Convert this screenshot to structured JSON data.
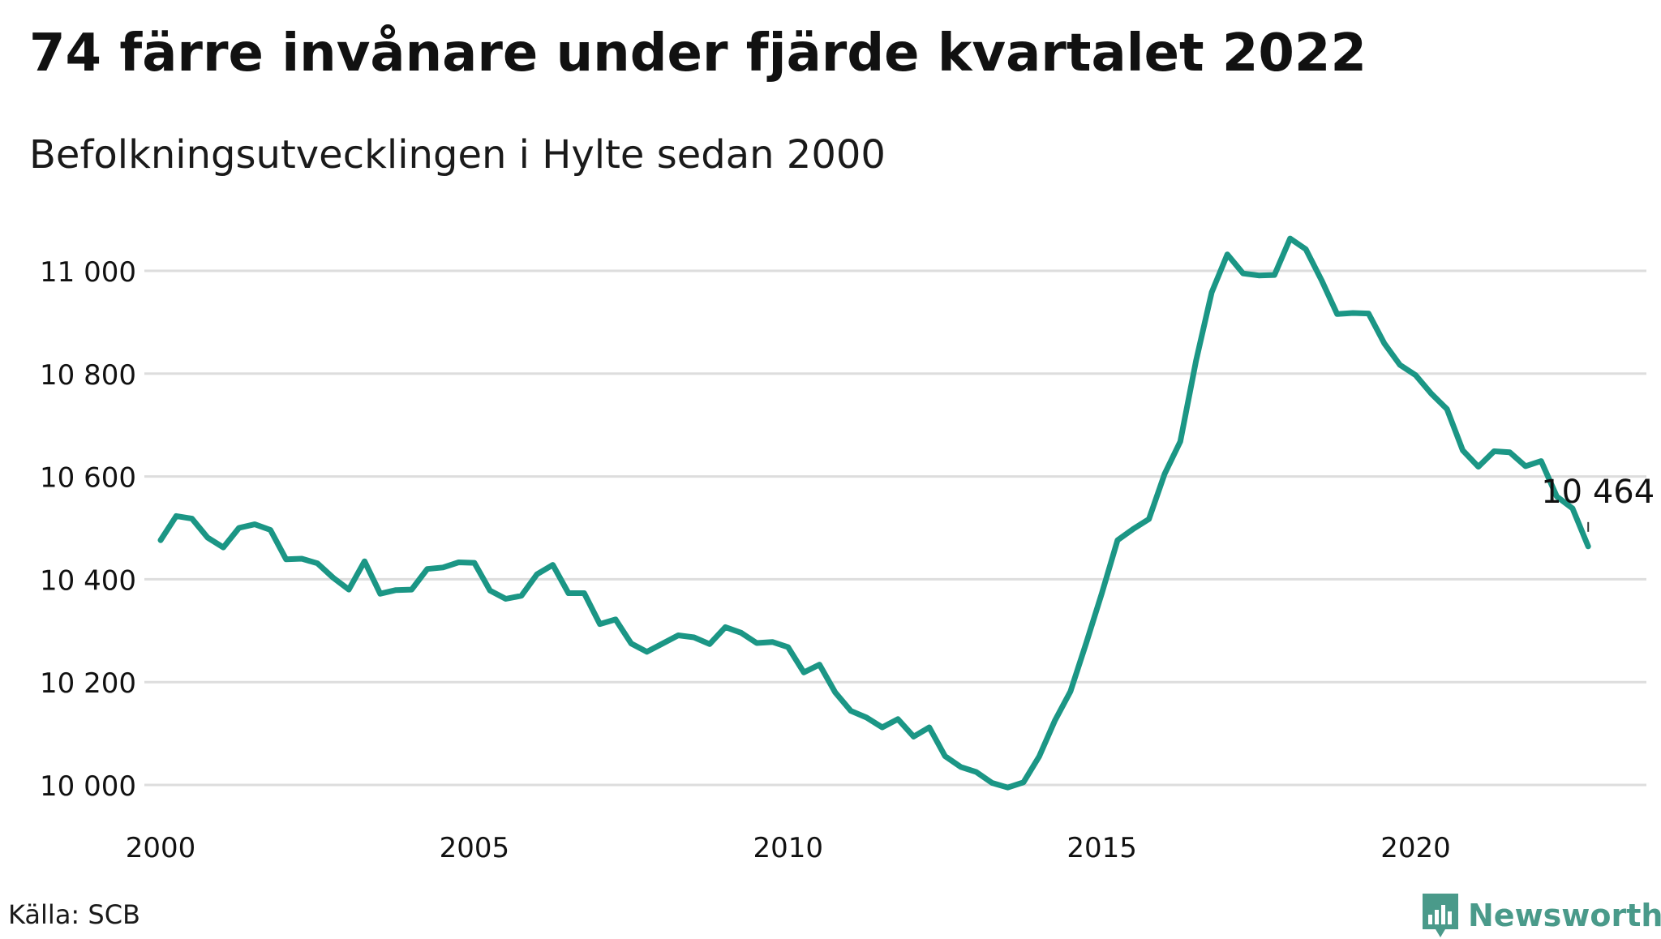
{
  "header": {
    "title": "74 färre invånare under fjärde kvartalet 2022",
    "subtitle": "Befolkningsutvecklingen i Hylte sedan 2000"
  },
  "footer": {
    "source": "Källa: SCB",
    "brand": "Newsworthy",
    "brand_icon": "bar-chart-speech-bubble-icon"
  },
  "colors": {
    "line": "#1b9685",
    "grid": "#dddddd",
    "text": "#111111",
    "brand": "#4a9a8a"
  },
  "chart_data": {
    "type": "line",
    "title": "74 färre invånare under fjärde kvartalet 2022",
    "subtitle": "Befolkningsutvecklingen i Hylte sedan 2000",
    "xlabel": "",
    "ylabel": "",
    "xlim": [
      2000,
      2023
    ],
    "ylim": [
      10000,
      11000
    ],
    "x_ticks": [
      2000,
      2005,
      2010,
      2015,
      2020
    ],
    "x_tick_labels": [
      "2000",
      "2005",
      "2010",
      "2015",
      "2020"
    ],
    "y_ticks": [
      10000,
      10200,
      10400,
      10600,
      10800,
      11000
    ],
    "y_tick_labels": [
      "10 000",
      "10 200",
      "10 400",
      "10 600",
      "10 800",
      "11 000"
    ],
    "grid": true,
    "legend": "none",
    "series": [
      {
        "x": [
          2000.0,
          2000.25,
          2000.5,
          2000.75,
          2001.0,
          2001.25,
          2001.5,
          2001.75,
          2002.0,
          2002.25,
          2002.5,
          2002.75,
          2003.0,
          2003.25,
          2003.5,
          2003.75,
          2004.0,
          2004.25,
          2004.5,
          2004.75,
          2005.0,
          2005.25,
          2005.5,
          2005.75,
          2006.0,
          2006.25,
          2006.5,
          2006.75,
          2007.0,
          2007.25,
          2007.5,
          2007.75,
          2008.0,
          2008.25,
          2008.5,
          2008.75,
          2009.0,
          2009.25,
          2009.5,
          2009.75,
          2010.0,
          2010.25,
          2010.5,
          2010.75,
          2011.0,
          2011.25,
          2011.5,
          2011.75,
          2012.0,
          2012.25,
          2012.5,
          2012.75,
          2013.0,
          2013.25,
          2013.5,
          2013.75,
          2014.0,
          2014.25,
          2014.5,
          2014.75,
          2015.0,
          2015.25,
          2015.5,
          2015.75,
          2016.0,
          2016.25,
          2016.5,
          2016.75,
          2017.0,
          2017.25,
          2017.5,
          2017.75,
          2018.0,
          2018.25,
          2018.5,
          2018.75,
          2019.0,
          2019.25,
          2019.5,
          2019.75,
          2020.0,
          2020.25,
          2020.5,
          2020.75,
          2021.0,
          2021.25,
          2021.5,
          2021.75,
          2022.0,
          2022.25,
          2022.5,
          2022.75
        ],
        "values": [
          10476,
          10523,
          10518,
          10481,
          10462,
          10500,
          10507,
          10496,
          10439,
          10440,
          10431,
          10403,
          10380,
          10435,
          10372,
          10379,
          10380,
          10420,
          10423,
          10433,
          10432,
          10378,
          10362,
          10368,
          10410,
          10428,
          10373,
          10373,
          10313,
          10322,
          10275,
          10259,
          10275,
          10291,
          10287,
          10274,
          10307,
          10296,
          10276,
          10278,
          10268,
          10219,
          10234,
          10180,
          10144,
          10131,
          10112,
          10128,
          10094,
          10112,
          10056,
          10035,
          10025,
          10004,
          9995,
          10005,
          10055,
          10125,
          10182,
          10276,
          10373,
          10476,
          10498,
          10517,
          10605,
          10668,
          10825,
          10958,
          11032,
          10995,
          10991,
          10992,
          11063,
          11042,
          10982,
          10916,
          10918,
          10917,
          10859,
          10817,
          10797,
          10761,
          10731,
          10651,
          10619,
          10649,
          10647,
          10620,
          10630,
          10561,
          10538,
          10464
        ]
      }
    ],
    "annotations": [
      {
        "x": 2022.75,
        "y": 10464,
        "text": "10 464"
      }
    ]
  }
}
